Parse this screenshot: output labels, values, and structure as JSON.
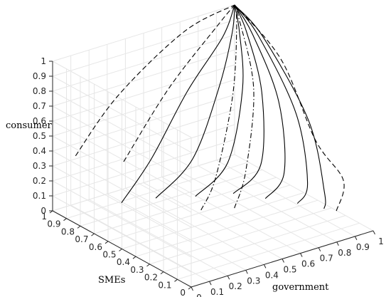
{
  "chart_data": {
    "type": "line",
    "title": "",
    "xlabel": "government",
    "ylabel": "SMEs",
    "zlabel": "consumer",
    "xlim": [
      0,
      1
    ],
    "ylim": [
      0,
      1
    ],
    "zlim": [
      0,
      1
    ],
    "x_ticks": [
      "0",
      "0.1",
      "0.2",
      "0.3",
      "0.4",
      "0.5",
      "0.6",
      "0.7",
      "0.8",
      "0.9",
      "1"
    ],
    "y_ticks": [
      "0",
      "0.1",
      "0.2",
      "0.3",
      "0.4",
      "0.5",
      "0.6",
      "0.7",
      "0.8",
      "0.9",
      "1"
    ],
    "z_ticks": [
      "0",
      "0.1",
      "0.2",
      "0.3",
      "0.4",
      "0.5",
      "0.6",
      "0.7",
      "0.8",
      "0.9",
      "1"
    ],
    "grid": true,
    "line_color": "#000000",
    "series": [
      {
        "style": "solid",
        "points": [
          [
            0.15,
            0.7,
            0.15
          ],
          [
            0.3,
            0.68,
            0.4
          ],
          [
            0.55,
            0.75,
            0.72
          ],
          [
            0.82,
            0.85,
            0.93
          ],
          [
            1,
            1,
            1
          ]
        ]
      },
      {
        "style": "solid",
        "points": [
          [
            0.3,
            0.65,
            0.15
          ],
          [
            0.48,
            0.62,
            0.36
          ],
          [
            0.7,
            0.72,
            0.7
          ],
          [
            0.88,
            0.86,
            0.93
          ],
          [
            1,
            1,
            1
          ]
        ]
      },
      {
        "style": "solid",
        "points": [
          [
            0.48,
            0.6,
            0.12
          ],
          [
            0.62,
            0.55,
            0.32
          ],
          [
            0.8,
            0.68,
            0.68
          ],
          [
            0.92,
            0.86,
            0.92
          ],
          [
            1,
            1,
            1
          ]
        ]
      },
      {
        "style": "solid",
        "points": [
          [
            0.65,
            0.55,
            0.1
          ],
          [
            0.74,
            0.47,
            0.3
          ],
          [
            0.86,
            0.62,
            0.66
          ],
          [
            0.95,
            0.85,
            0.92
          ],
          [
            1,
            1,
            1
          ]
        ]
      },
      {
        "style": "solid",
        "points": [
          [
            0.75,
            0.45,
            0.08
          ],
          [
            0.8,
            0.38,
            0.27
          ],
          [
            0.9,
            0.55,
            0.62
          ],
          [
            0.97,
            0.83,
            0.9
          ],
          [
            1,
            1,
            1
          ]
        ]
      },
      {
        "style": "solid",
        "points": [
          [
            0.85,
            0.35,
            0.06
          ],
          [
            0.86,
            0.29,
            0.22
          ],
          [
            0.92,
            0.45,
            0.58
          ],
          [
            0.98,
            0.8,
            0.9
          ],
          [
            1,
            1,
            1
          ]
        ]
      },
      {
        "style": "solid",
        "points": [
          [
            0.92,
            0.25,
            0.05
          ],
          [
            0.9,
            0.22,
            0.18
          ],
          [
            0.95,
            0.4,
            0.55
          ],
          [
            0.99,
            0.78,
            0.9
          ],
          [
            1,
            1,
            1
          ]
        ]
      },
      {
        "style": "dashed",
        "points": [
          [
            0.05,
            0.9,
            0.4
          ],
          [
            0.3,
            0.92,
            0.7
          ],
          [
            0.7,
            0.97,
            0.95
          ],
          [
            1,
            1,
            1
          ]
        ]
      },
      {
        "style": "dashed",
        "points": [
          [
            0.2,
            0.75,
            0.38
          ],
          [
            0.5,
            0.82,
            0.72
          ],
          [
            0.85,
            0.93,
            0.95
          ],
          [
            1,
            1,
            1
          ]
        ]
      },
      {
        "style": "dashed",
        "points": [
          [
            0.95,
            0.2,
            0.05
          ],
          [
            0.95,
            0.15,
            0.28
          ],
          [
            0.85,
            0.22,
            0.55
          ],
          [
            0.95,
            0.6,
            0.86
          ],
          [
            1,
            1,
            1
          ]
        ]
      },
      {
        "style": "dashdot",
        "points": [
          [
            0.45,
            0.52,
            0.08
          ],
          [
            0.5,
            0.48,
            0.3
          ],
          [
            0.7,
            0.62,
            0.7
          ],
          [
            0.92,
            0.88,
            0.95
          ],
          [
            1,
            1,
            1
          ]
        ]
      },
      {
        "style": "dashdot",
        "points": [
          [
            0.58,
            0.45,
            0.08
          ],
          [
            0.62,
            0.42,
            0.33
          ],
          [
            0.8,
            0.6,
            0.72
          ],
          [
            0.96,
            0.92,
            0.98
          ],
          [
            1,
            1,
            1
          ]
        ]
      }
    ]
  }
}
